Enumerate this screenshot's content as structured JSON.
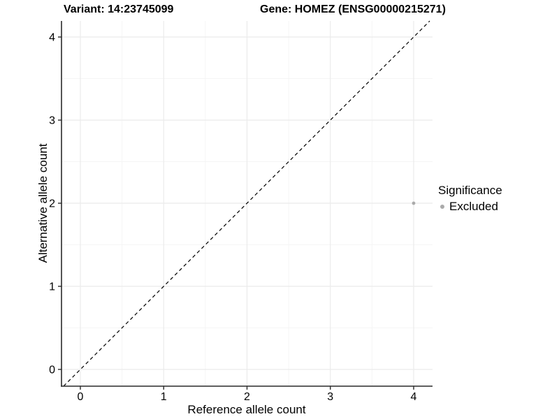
{
  "titles": {
    "variant": "Variant: 14:23745099",
    "gene": "Gene: HOMEZ (ENSG00000215271)"
  },
  "chart_data": {
    "type": "scatter",
    "title": "Variant: 14:23745099  Gene: HOMEZ (ENSG00000215271)",
    "xlabel": "Reference allele count",
    "ylabel": "Alternative allele count",
    "xlim": [
      0,
      4
    ],
    "ylim": [
      0,
      4
    ],
    "x_ticks": [
      "0",
      "1",
      "2",
      "3",
      "4"
    ],
    "y_ticks": [
      "0",
      "1",
      "2",
      "3",
      "4"
    ],
    "x_tick_values": [
      0,
      1,
      2,
      3,
      4
    ],
    "y_tick_values": [
      0,
      1,
      2,
      3,
      4
    ],
    "grid": true,
    "minor_grid": true,
    "points": [
      {
        "x": 4,
        "y": 2,
        "significance": "Excluded"
      }
    ],
    "reference_line": {
      "kind": "abline",
      "slope": 1,
      "intercept": 0,
      "style": "dashed",
      "color": "#000000"
    },
    "legend": {
      "title": "Significance",
      "position": "right",
      "items": [
        {
          "label": "Excluded",
          "color": "#aaaaaa"
        }
      ]
    },
    "colors": {
      "point": "#aaaaaa",
      "grid_major": "#ebebeb",
      "grid_minor": "#f5f5f5",
      "axis_line": "#2a2a2a",
      "tick": "#2a2a2a",
      "background": "#ffffff"
    }
  }
}
